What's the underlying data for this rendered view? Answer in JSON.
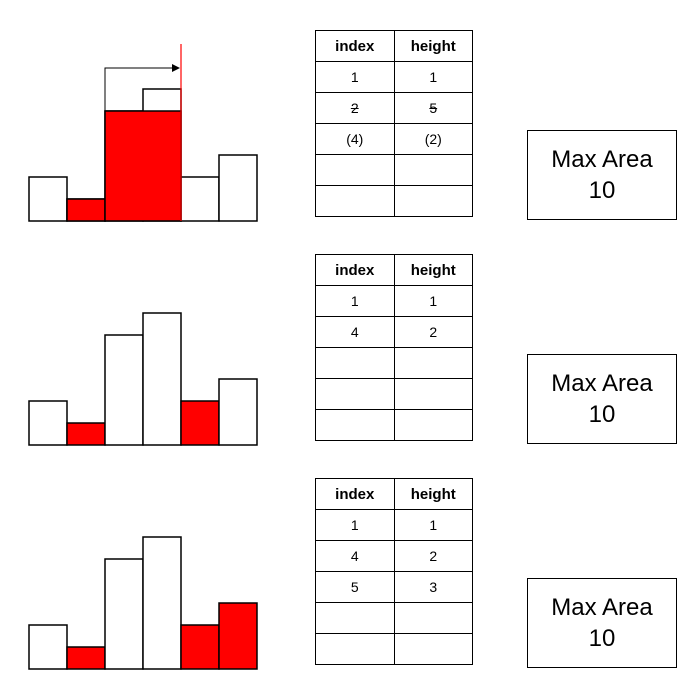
{
  "colors": {
    "active_bar": "#ff0000",
    "bar_outline": "#000000",
    "pointer_line": "#ff0000"
  },
  "table_headers": {
    "index": "index",
    "height": "height"
  },
  "panels": [
    {
      "highlight": [
        1,
        2
      ],
      "pointer_arrow": true,
      "rows": [
        {
          "index": "1",
          "height": "1",
          "strike": false
        },
        {
          "index": "2",
          "height": "5",
          "strike": true
        },
        {
          "index": "(4)",
          "height": "(2)",
          "strike": false
        },
        {
          "index": "",
          "height": "",
          "strike": false
        },
        {
          "index": "",
          "height": "",
          "strike": false
        }
      ],
      "max_area_label": "Max Area",
      "max_area_value": "10"
    },
    {
      "highlight": [
        1,
        4
      ],
      "pointer_arrow": false,
      "rows": [
        {
          "index": "1",
          "height": "1",
          "strike": false
        },
        {
          "index": "4",
          "height": "2",
          "strike": false
        },
        {
          "index": "",
          "height": "",
          "strike": false
        },
        {
          "index": "",
          "height": "",
          "strike": false
        },
        {
          "index": "",
          "height": "",
          "strike": false
        }
      ],
      "max_area_label": "Max Area",
      "max_area_value": "10"
    },
    {
      "highlight": [
        1,
        4,
        5
      ],
      "pointer_arrow": false,
      "rows": [
        {
          "index": "1",
          "height": "1",
          "strike": false
        },
        {
          "index": "4",
          "height": "2",
          "strike": false
        },
        {
          "index": "5",
          "height": "3",
          "strike": false
        },
        {
          "index": "",
          "height": "",
          "strike": false
        },
        {
          "index": "",
          "height": "",
          "strike": false
        }
      ],
      "max_area_label": "Max Area",
      "max_area_value": "10"
    }
  ],
  "histogram_heights": [
    2,
    1,
    5,
    6,
    2,
    3
  ]
}
